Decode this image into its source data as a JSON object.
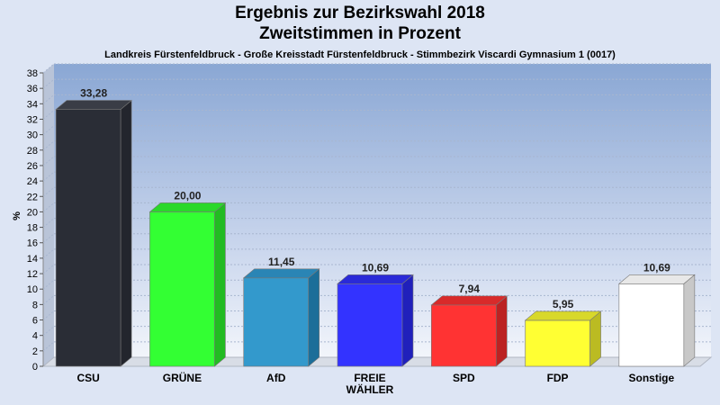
{
  "header": {
    "title_line1": "Ergebnis zur Bezirkswahl 2018",
    "title_line2": "Zweitstimmen in Prozent",
    "subtitle": "Landkreis Fürstenfeldbruck - Große Kreisstadt Fürstenfeldbruck - Stimmbezirk Viscardi Gymnasium 1 (0017)"
  },
  "chart_data": {
    "type": "bar",
    "title": "Ergebnis zur Bezirkswahl 2018 Zweitstimmen in Prozent",
    "subtitle": "Landkreis Fürstenfeldbruck - Große Kreisstadt Fürstenfeldbruck - Stimmbezirk Viscardi Gymnasium 1 (0017)",
    "ylabel": "%",
    "xlabel": "",
    "ylim": [
      0,
      38
    ],
    "ytick_step": 2,
    "grid": true,
    "categories": [
      [
        "CSU"
      ],
      [
        "GRÜNE"
      ],
      [
        "AfD"
      ],
      [
        "FREIE",
        "WÄHLER"
      ],
      [
        "SPD"
      ],
      [
        "FDP"
      ],
      [
        "Sonstige"
      ]
    ],
    "values": [
      33.28,
      20.0,
      11.45,
      10.69,
      7.94,
      5.95,
      10.69
    ],
    "value_labels": [
      "33,28",
      "20,00",
      "11,45",
      "10,69",
      "7,94",
      "5,95",
      "10,69"
    ],
    "colors": [
      "#2a2d36",
      "#33ff33",
      "#3399cc",
      "#3333ff",
      "#ff3333",
      "#ffff33",
      "#ffffff"
    ],
    "side_colors": [
      "#23252d",
      "#22bb22",
      "#1c6e99",
      "#2020bb",
      "#bb2222",
      "#bbbb22",
      "#c8c8c8"
    ],
    "top_colors": [
      "#3a3d46",
      "#2ad82a",
      "#2a85b5",
      "#2a2ad8",
      "#d82a2a",
      "#d8d82a",
      "#e8e8e8"
    ]
  }
}
